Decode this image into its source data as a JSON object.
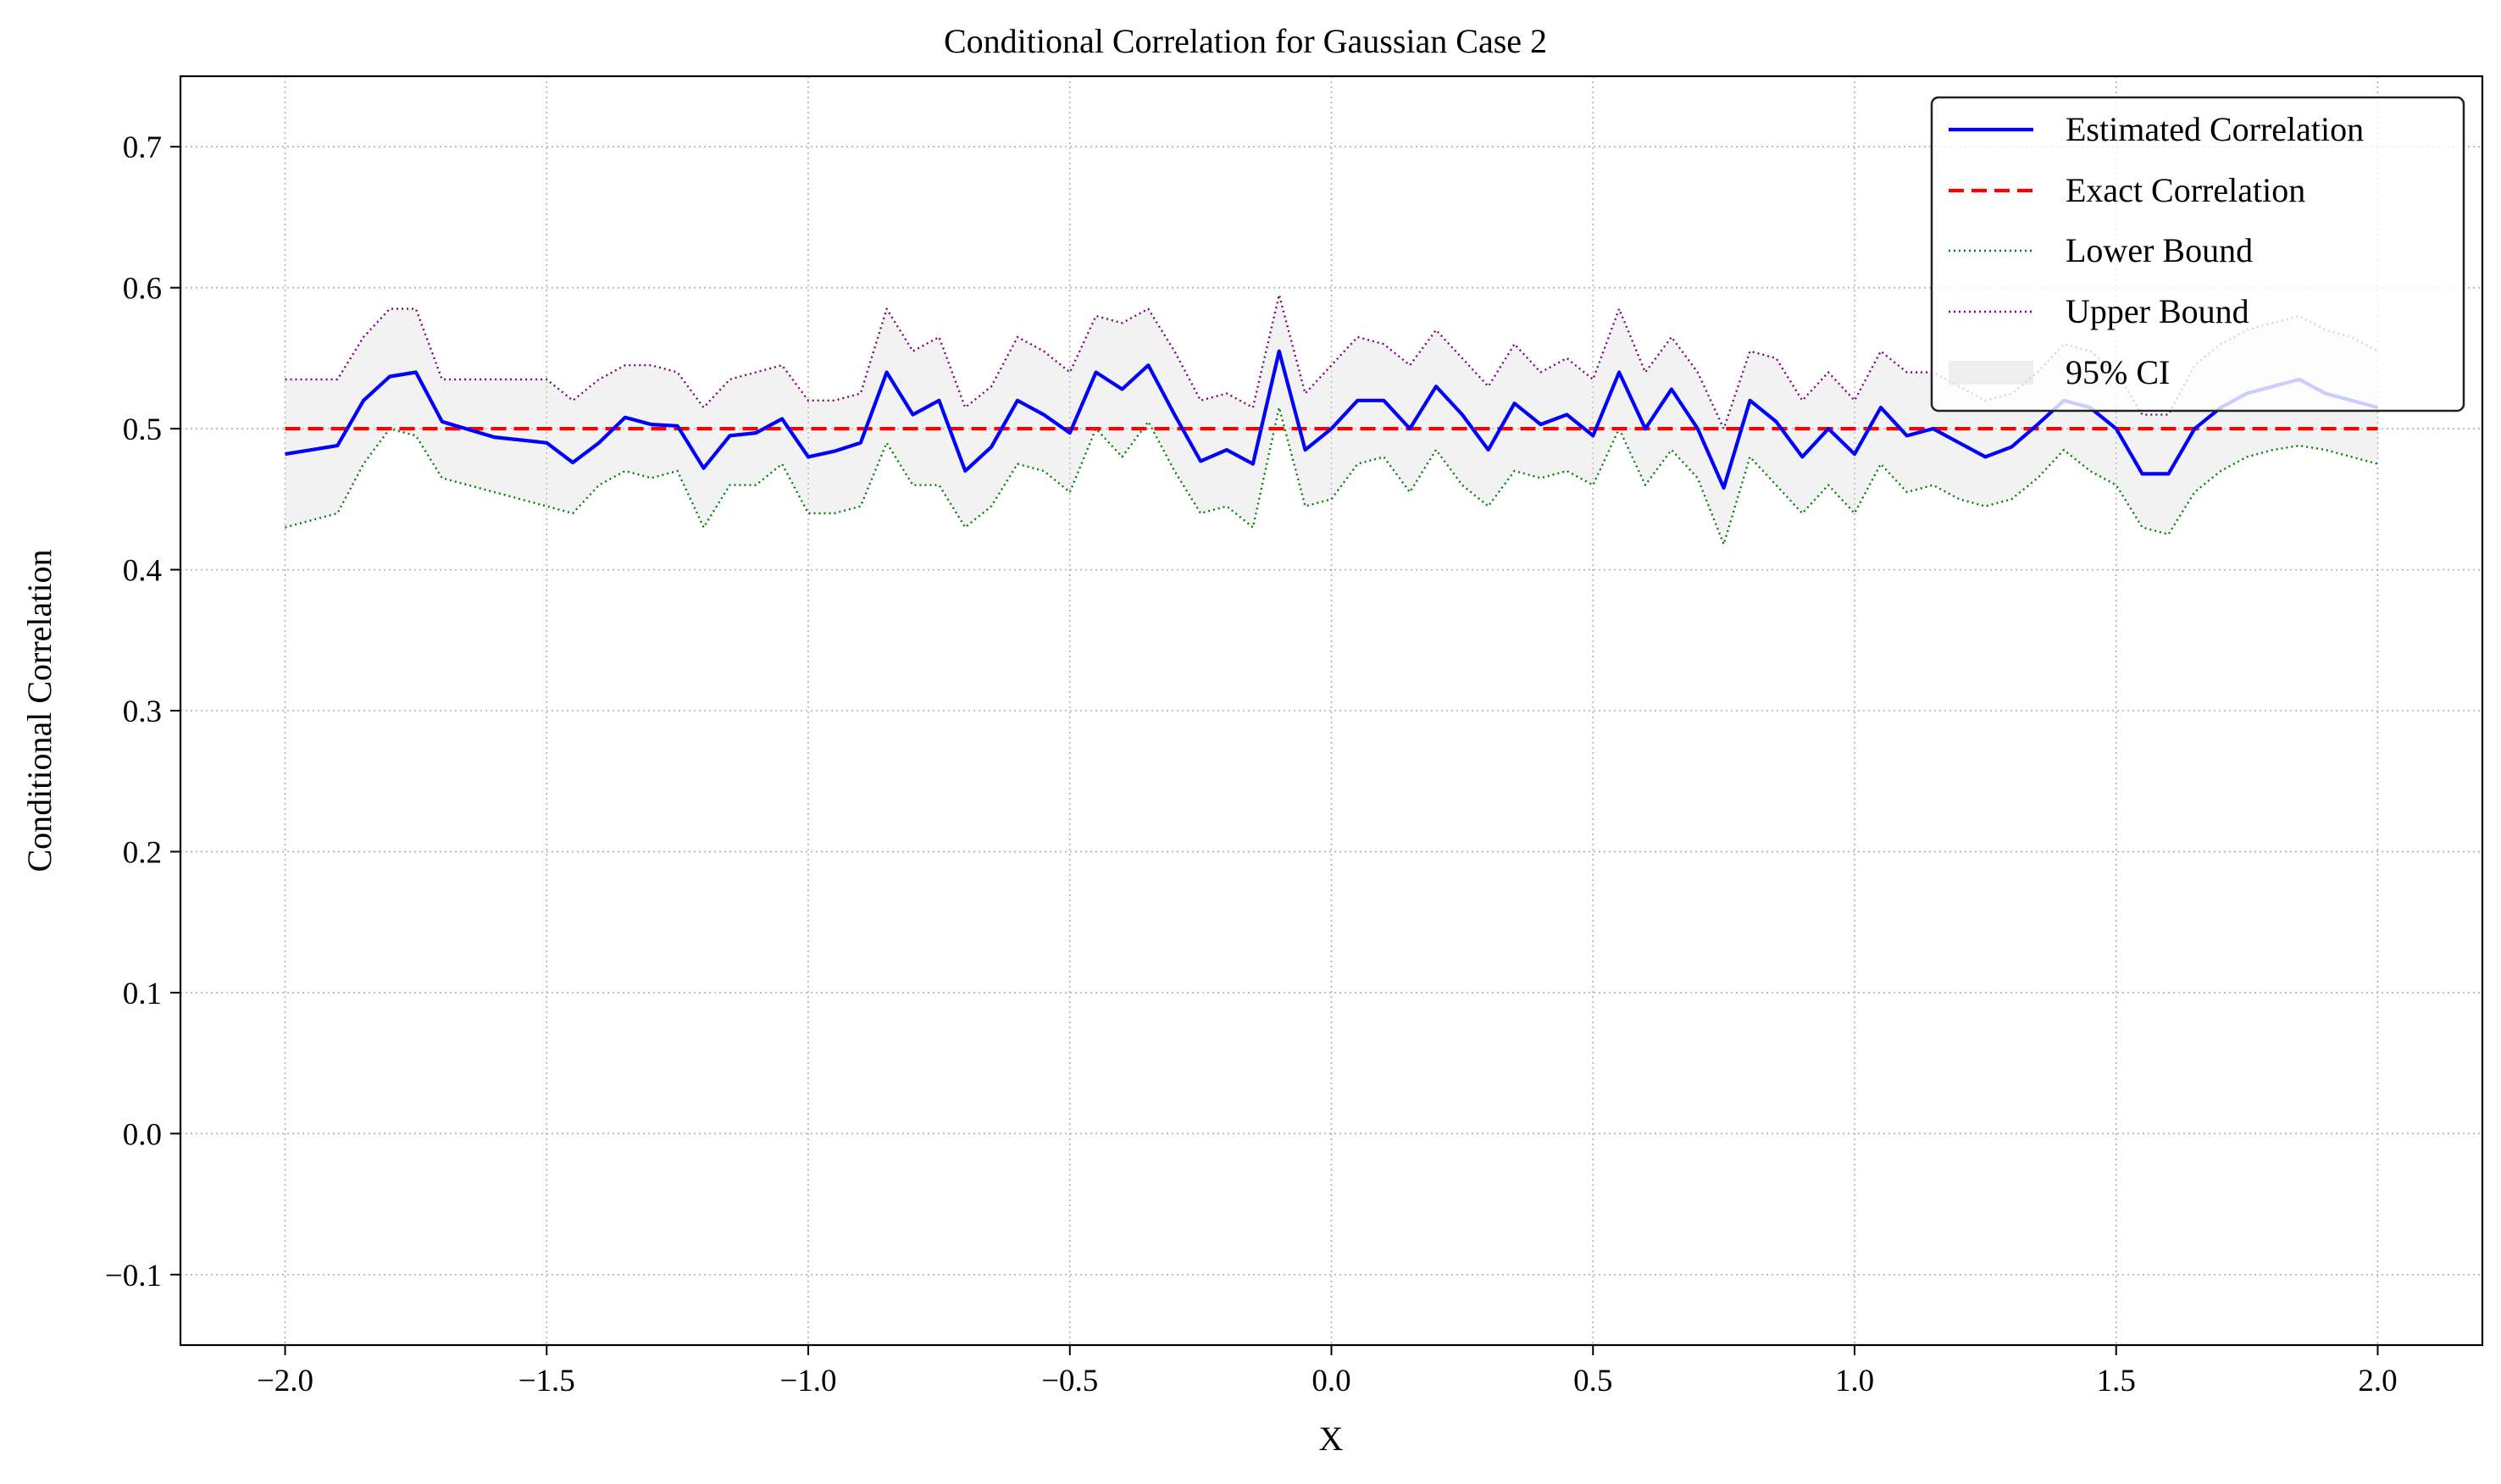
{
  "chart_data": {
    "type": "line",
    "title": "Conditional Correlation for Gaussian Case 2",
    "xlabel": "X",
    "ylabel": "Conditional Correlation",
    "xlim": [
      -2.2,
      2.2
    ],
    "ylim": [
      -0.15,
      0.75
    ],
    "xticks": [
      -2.0,
      -1.5,
      -1.0,
      -0.5,
      0.0,
      0.5,
      1.0,
      1.5,
      2.0
    ],
    "xtick_labels": [
      "−2.0",
      "−1.5",
      "−1.0",
      "−0.5",
      "0.0",
      "0.5",
      "1.0",
      "1.5",
      "2.0"
    ],
    "yticks": [
      -0.1,
      0.0,
      0.1,
      0.2,
      0.3,
      0.4,
      0.5,
      0.6,
      0.7
    ],
    "ytick_labels": [
      "−0.1",
      "0.0",
      "0.1",
      "0.2",
      "0.3",
      "0.4",
      "0.5",
      "0.6",
      "0.7"
    ],
    "grid": true,
    "legend_position": "top-right",
    "colors": {
      "estimated": "#0000ff",
      "exact": "#ff0000",
      "lower": "#008000",
      "upper": "#800080",
      "ci_fill": "#d9d9d9"
    },
    "x": [
      -2.0,
      -1.9,
      -1.85,
      -1.8,
      -1.75,
      -1.7,
      -1.6,
      -1.5,
      -1.45,
      -1.4,
      -1.35,
      -1.3,
      -1.25,
      -1.2,
      -1.15,
      -1.1,
      -1.05,
      -1.0,
      -0.95,
      -0.9,
      -0.85,
      -0.8,
      -0.75,
      -0.7,
      -0.65,
      -0.6,
      -0.55,
      -0.5,
      -0.45,
      -0.4,
      -0.35,
      -0.3,
      -0.25,
      -0.2,
      -0.15,
      -0.1,
      -0.05,
      0.0,
      0.05,
      0.1,
      0.15,
      0.2,
      0.25,
      0.3,
      0.35,
      0.4,
      0.45,
      0.5,
      0.55,
      0.6,
      0.65,
      0.7,
      0.75,
      0.8,
      0.85,
      0.9,
      0.95,
      1.0,
      1.05,
      1.1,
      1.15,
      1.2,
      1.25,
      1.3,
      1.35,
      1.4,
      1.45,
      1.5,
      1.55,
      1.6,
      1.65,
      1.7,
      1.75,
      1.8,
      1.85,
      1.9,
      1.95,
      2.0
    ],
    "series": [
      {
        "name": "Estimated Correlation",
        "style": "solid",
        "values": [
          0.482,
          0.488,
          0.52,
          0.537,
          0.54,
          0.505,
          0.494,
          0.49,
          0.476,
          0.49,
          0.508,
          0.503,
          0.502,
          0.472,
          0.495,
          0.497,
          0.507,
          0.48,
          0.484,
          0.49,
          0.54,
          0.51,
          0.52,
          0.47,
          0.487,
          0.52,
          0.51,
          0.497,
          0.54,
          0.528,
          0.545,
          0.51,
          0.477,
          0.485,
          0.475,
          0.555,
          0.485,
          0.5,
          0.52,
          0.52,
          0.5,
          0.53,
          0.51,
          0.485,
          0.518,
          0.503,
          0.51,
          0.495,
          0.54,
          0.5,
          0.528,
          0.5,
          0.458,
          0.52,
          0.505,
          0.48,
          0.5,
          0.482,
          0.515,
          0.495,
          0.5,
          0.49,
          0.48,
          0.487,
          0.503,
          0.52,
          0.515,
          0.5,
          0.468,
          0.468,
          0.5,
          0.515,
          0.525,
          0.53,
          0.535,
          0.525,
          0.52,
          0.515
        ]
      },
      {
        "name": "Exact Correlation",
        "style": "dashed",
        "values": [
          0.5,
          0.5,
          0.5,
          0.5,
          0.5,
          0.5,
          0.5,
          0.5,
          0.5,
          0.5,
          0.5,
          0.5,
          0.5,
          0.5,
          0.5,
          0.5,
          0.5,
          0.5,
          0.5,
          0.5,
          0.5,
          0.5,
          0.5,
          0.5,
          0.5,
          0.5,
          0.5,
          0.5,
          0.5,
          0.5,
          0.5,
          0.5,
          0.5,
          0.5,
          0.5,
          0.5,
          0.5,
          0.5,
          0.5,
          0.5,
          0.5,
          0.5,
          0.5,
          0.5,
          0.5,
          0.5,
          0.5,
          0.5,
          0.5,
          0.5,
          0.5,
          0.5,
          0.5,
          0.5,
          0.5,
          0.5,
          0.5,
          0.5,
          0.5,
          0.5,
          0.5,
          0.5,
          0.5,
          0.5,
          0.5,
          0.5,
          0.5,
          0.5,
          0.5,
          0.5,
          0.5,
          0.5,
          0.5,
          0.5,
          0.5,
          0.5,
          0.5,
          0.5
        ]
      },
      {
        "name": "Lower Bound",
        "style": "dotted",
        "values": [
          0.43,
          0.44,
          0.475,
          0.5,
          0.495,
          0.465,
          0.455,
          0.445,
          0.44,
          0.46,
          0.47,
          0.465,
          0.47,
          0.43,
          0.46,
          0.46,
          0.475,
          0.44,
          0.44,
          0.445,
          0.49,
          0.46,
          0.46,
          0.43,
          0.445,
          0.475,
          0.47,
          0.455,
          0.5,
          0.48,
          0.505,
          0.47,
          0.44,
          0.445,
          0.43,
          0.515,
          0.445,
          0.45,
          0.475,
          0.48,
          0.455,
          0.485,
          0.46,
          0.445,
          0.47,
          0.465,
          0.47,
          0.46,
          0.5,
          0.46,
          0.485,
          0.465,
          0.418,
          0.48,
          0.46,
          0.44,
          0.46,
          0.44,
          0.475,
          0.455,
          0.46,
          0.45,
          0.445,
          0.45,
          0.465,
          0.485,
          0.47,
          0.46,
          0.43,
          0.425,
          0.455,
          0.47,
          0.48,
          0.485,
          0.488,
          0.485,
          0.48,
          0.475
        ]
      },
      {
        "name": "Upper Bound",
        "style": "dotted",
        "values": [
          0.535,
          0.535,
          0.565,
          0.585,
          0.585,
          0.535,
          0.535,
          0.535,
          0.52,
          0.535,
          0.545,
          0.545,
          0.54,
          0.515,
          0.535,
          0.54,
          0.545,
          0.52,
          0.52,
          0.525,
          0.585,
          0.555,
          0.565,
          0.515,
          0.53,
          0.565,
          0.555,
          0.54,
          0.58,
          0.575,
          0.585,
          0.555,
          0.52,
          0.525,
          0.515,
          0.595,
          0.525,
          0.545,
          0.565,
          0.56,
          0.545,
          0.57,
          0.55,
          0.53,
          0.56,
          0.54,
          0.55,
          0.535,
          0.585,
          0.54,
          0.565,
          0.54,
          0.5,
          0.555,
          0.55,
          0.52,
          0.54,
          0.52,
          0.555,
          0.54,
          0.54,
          0.53,
          0.52,
          0.525,
          0.54,
          0.56,
          0.555,
          0.54,
          0.51,
          0.51,
          0.545,
          0.56,
          0.57,
          0.575,
          0.58,
          0.57,
          0.565,
          0.555
        ]
      }
    ],
    "legend": [
      {
        "label": "Estimated Correlation",
        "key": "estimated",
        "kind": "line-solid"
      },
      {
        "label": "Exact Correlation",
        "key": "exact",
        "kind": "line-dashed"
      },
      {
        "label": "Lower Bound",
        "key": "lower",
        "kind": "line-dotted"
      },
      {
        "label": "Upper Bound",
        "key": "upper",
        "kind": "line-dotted"
      },
      {
        "label": "95% CI",
        "key": "ci_fill",
        "kind": "patch"
      }
    ]
  }
}
